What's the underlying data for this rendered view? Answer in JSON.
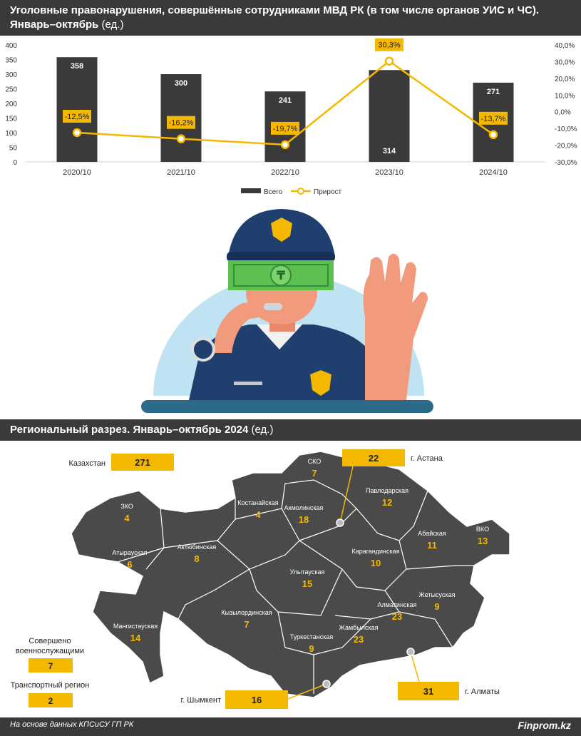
{
  "header": {
    "title_line1": "Уголовные правонарушения, совершённые сотрудниками МВД РК (в том числе органов УИС и ЧС).",
    "title_line2_bold": "Январь–октябрь",
    "title_line2_unit": "(ед.)"
  },
  "chart_data": {
    "type": "bar",
    "categories": [
      "2020/10",
      "2021/10",
      "2022/10",
      "2023/10",
      "2024/10"
    ],
    "series": [
      {
        "name": "Всего",
        "type": "bar",
        "values": [
          358,
          300,
          241,
          314,
          271
        ],
        "labels": [
          "358",
          "300",
          "241",
          "314",
          "271"
        ]
      },
      {
        "name": "Прирост",
        "type": "line",
        "values": [
          -12.5,
          -16.2,
          -19.7,
          30.3,
          -13.7
        ],
        "labels": [
          "-12,5%",
          "-16,2%",
          "-19,7%",
          "30,3%",
          "-13,7%"
        ]
      }
    ],
    "ylim": [
      0,
      400
    ],
    "y_ticks": [
      "0",
      "50",
      "100",
      "150",
      "200",
      "250",
      "300",
      "350",
      "400"
    ],
    "y2lim": [
      -30,
      40
    ],
    "y2_ticks": [
      "-30,0%",
      "-20,0%",
      "-10,0%",
      "0,0%",
      "10,0%",
      "20,0%",
      "30,0%",
      "40,0%"
    ],
    "legend": {
      "position": "bottom",
      "items": [
        "Всего",
        "Прирост"
      ]
    }
  },
  "colors": {
    "bar": "#3a3a3a",
    "line": "#f5b800",
    "label_bg": "#f5b800",
    "map": "#4a4a4a",
    "region_value": "#f5b800"
  },
  "section": {
    "title_bold": "Региональный разрез. Январь–октябрь 2024",
    "unit": "(ед.)"
  },
  "map": {
    "total_label": "Казахстан",
    "total_value": "271",
    "regions": [
      {
        "name": "СКО",
        "value": "7"
      },
      {
        "name": "Костанайская",
        "value": "4"
      },
      {
        "name": "Акмолинская",
        "value": "18"
      },
      {
        "name": "Павлодарская",
        "value": "12"
      },
      {
        "name": "ЗКО",
        "value": "4"
      },
      {
        "name": "Актюбинская",
        "value": "8"
      },
      {
        "name": "Атырауская",
        "value": "6"
      },
      {
        "name": "Карагандинская",
        "value": "10"
      },
      {
        "name": "Абайская",
        "value": "11"
      },
      {
        "name": "ВКО",
        "value": "13"
      },
      {
        "name": "Улытауская",
        "value": "15"
      },
      {
        "name": "Жетысуская",
        "value": "9"
      },
      {
        "name": "Алматинская",
        "value": "23"
      },
      {
        "name": "Мангистауская",
        "value": "14"
      },
      {
        "name": "Кызылординская",
        "value": "7"
      },
      {
        "name": "Жамбылская",
        "value": "23"
      },
      {
        "name": "Туркестанская",
        "value": "9"
      }
    ],
    "cities": [
      {
        "name": "г. Астана",
        "value": "22"
      },
      {
        "name": "г. Шымкент",
        "value": "16"
      },
      {
        "name": "г. Алматы",
        "value": "31"
      }
    ],
    "military_label_1": "Совершено",
    "military_label_2": "военнослужащими",
    "military_value": "7",
    "transport_label": "Транспортный регион",
    "transport_value": "2"
  },
  "footer": {
    "source": "На основе данных КПСиСУ ГП РК",
    "brand": "Finprom.kz"
  }
}
